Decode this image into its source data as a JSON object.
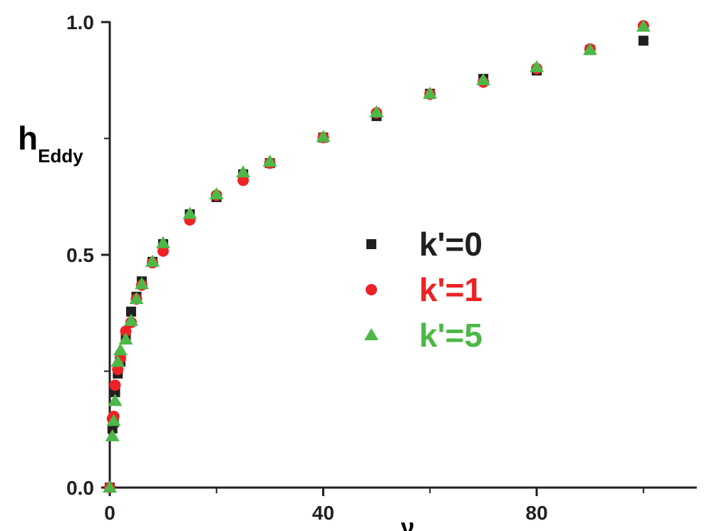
{
  "chart_data": {
    "type": "scatter",
    "title": "",
    "xlabel": "ν",
    "ylabel": "h",
    "ylabel_sub": "Eddy",
    "xlim": [
      0,
      110
    ],
    "ylim": [
      0,
      1
    ],
    "x_major_ticks": [
      0,
      40,
      80
    ],
    "x_minor_ticks": [
      20,
      60,
      100
    ],
    "y_major_ticks": [
      0.0,
      0.5,
      1.0
    ],
    "y_tick_labels": [
      "0.0",
      "0.5",
      "1.0"
    ],
    "x_tick_labels": [
      "0",
      "40",
      "80"
    ],
    "y_minor_ticks": [
      0.25,
      0.75
    ],
    "grid": false,
    "legend_position": "center-right",
    "x": [
      0,
      0.5,
      0.75,
      1,
      1.5,
      2,
      3,
      4,
      5,
      6,
      8,
      10,
      15,
      20,
      25,
      30,
      40,
      50,
      60,
      70,
      80,
      90,
      100
    ],
    "series": [
      {
        "name": "k'=0",
        "marker": "square",
        "color": "#231f20",
        "values": [
          0,
          0.127,
          0.14,
          0.205,
          0.245,
          0.27,
          0.32,
          0.378,
          0.41,
          0.443,
          0.485,
          0.523,
          0.587,
          0.624,
          0.673,
          0.697,
          0.752,
          0.798,
          0.846,
          0.878,
          0.896,
          0.94,
          0.96
        ]
      },
      {
        "name": "k'=1",
        "marker": "circle",
        "color": "#ed2224",
        "values": [
          0,
          0.148,
          0.153,
          0.22,
          0.254,
          0.278,
          0.336,
          0.355,
          0.405,
          0.435,
          0.483,
          0.508,
          0.575,
          0.628,
          0.66,
          0.697,
          0.752,
          0.805,
          0.845,
          0.871,
          0.9,
          0.942,
          0.992
        ]
      },
      {
        "name": "k'=5",
        "marker": "triangle",
        "color": "#4db848",
        "values": [
          0,
          0.11,
          0.143,
          0.186,
          0.27,
          0.295,
          0.318,
          0.358,
          0.405,
          0.437,
          0.485,
          0.525,
          0.588,
          0.63,
          0.677,
          0.7,
          0.753,
          0.806,
          0.846,
          0.875,
          0.903,
          0.94,
          0.99
        ]
      }
    ]
  }
}
